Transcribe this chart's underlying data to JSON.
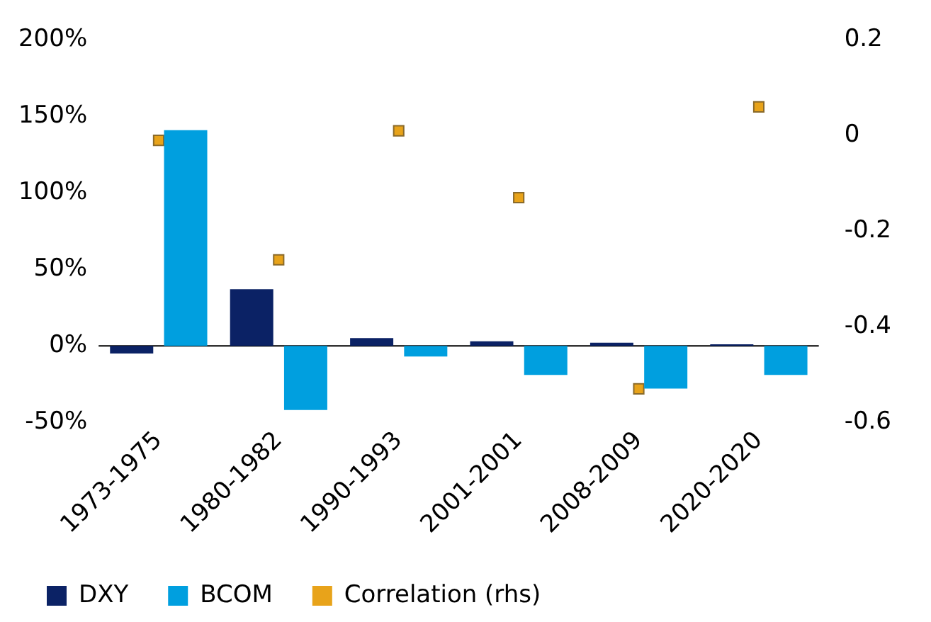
{
  "chart_data": {
    "type": "bar",
    "categories": [
      "1973-1975",
      "1980-1982",
      "1990-1993",
      "2001-2001",
      "2008-2009",
      "2020-2020"
    ],
    "series": [
      {
        "name": "DXY",
        "color": "#0b2265",
        "values": [
          -5,
          37,
          5,
          3,
          2,
          1
        ]
      },
      {
        "name": "BCOM",
        "color": "#009fdf",
        "values": [
          141,
          -42,
          -7,
          -19,
          -28,
          -19
        ]
      },
      {
        "name": "Correlation (rhs)",
        "type": "scatter",
        "axis": "y2",
        "color": "#e8a31a",
        "values": [
          -0.01,
          -0.26,
          0.01,
          -0.13,
          -0.53,
          0.06
        ]
      }
    ],
    "ylim": [
      -50,
      200
    ],
    "yticks": [
      {
        "value": -50,
        "label": "-50%"
      },
      {
        "value": 0,
        "label": "0%"
      },
      {
        "value": 50,
        "label": "50%"
      },
      {
        "value": 100,
        "label": "100%"
      },
      {
        "value": 150,
        "label": "150%"
      },
      {
        "value": 200,
        "label": "200%"
      }
    ],
    "y2lim": [
      -0.6,
      0.2
    ],
    "y2ticks": [
      -0.6,
      -0.4,
      -0.2,
      0,
      0.2
    ],
    "ref_lines": [
      {
        "axis": "y",
        "value": 0,
        "color": "#000000"
      }
    ],
    "grid": false,
    "legend": "bottom",
    "marker": "square"
  }
}
